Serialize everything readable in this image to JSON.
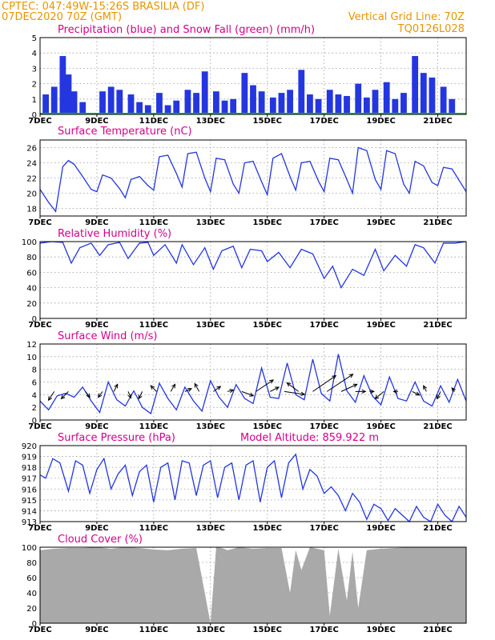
{
  "header": {
    "line1": "CPTEC:   047:49W-15:26S   BRASILIA (DF)",
    "line2": "07DEC2020 70Z (GMT)",
    "vgrid": "Vertical Grid Line: 70Z",
    "code": "TQ0126L028"
  },
  "colors": {
    "header": "#e69500",
    "title": "#d4008a",
    "line": "#2436e0",
    "snow": "#1fb04a",
    "cloud": "#a9a9a9"
  },
  "x_tick_labels": [
    "7DEC",
    "9DEC",
    "11DEC",
    "13DEC",
    "15DEC",
    "17DEC",
    "19DEC",
    "21DEC"
  ],
  "panels": [
    {
      "title": "Precipitation (blue) and Snow Fall (green) (mm/h)",
      "yticks": [
        "0",
        "1",
        "2",
        "3",
        "4",
        "5"
      ]
    },
    {
      "title": "Surface Temperature (nC)",
      "yticks": [
        "18",
        "20",
        "22",
        "24",
        "26"
      ]
    },
    {
      "title": "Relative Humidity (%)",
      "yticks": [
        "0",
        "20",
        "40",
        "60",
        "80",
        "100"
      ]
    },
    {
      "title": "Surface Wind (m/s)",
      "yticks": [
        "0",
        "2",
        "4",
        "6",
        "8",
        "10",
        "12"
      ]
    },
    {
      "title": "Surface Pressure (hPa)",
      "subtitle": "Model Altitude: 859.922 m",
      "yticks": [
        "913",
        "914",
        "915",
        "916",
        "917",
        "918",
        "919",
        "920"
      ]
    },
    {
      "title": "Cloud Cover (%)",
      "yticks": [
        "0",
        "20",
        "40",
        "60",
        "80",
        "100"
      ]
    }
  ],
  "chart_data": [
    {
      "type": "bar",
      "title": "Precipitation (blue) and Snow Fall (green) (mm/h)",
      "x": [
        0.2,
        0.5,
        0.8,
        1.0,
        1.2,
        1.5,
        2.2,
        2.5,
        2.8,
        3.2,
        3.5,
        3.8,
        4.2,
        4.5,
        4.8,
        5.2,
        5.5,
        5.8,
        6.2,
        6.5,
        6.8,
        7.2,
        7.5,
        7.8,
        8.2,
        8.5,
        8.8,
        9.2,
        9.5,
        9.8,
        10.2,
        10.5,
        10.8,
        11.2,
        11.5,
        11.8,
        12.2,
        12.5,
        12.8,
        13.2,
        13.5,
        13.8,
        14.2,
        14.5
      ],
      "series": [
        {
          "name": "Precipitation",
          "values": [
            1.3,
            1.8,
            3.8,
            2.6,
            1.5,
            0.8,
            1.5,
            1.8,
            1.6,
            1.3,
            0.8,
            0.6,
            1.4,
            0.6,
            0.9,
            1.6,
            1.4,
            2.8,
            1.5,
            0.9,
            1.0,
            2.7,
            1.9,
            1.5,
            1.1,
            1.4,
            1.6,
            2.9,
            1.3,
            1.0,
            1.6,
            1.3,
            1.2,
            2.0,
            1.1,
            1.6,
            2.1,
            1.0,
            1.4,
            3.8,
            2.7,
            2.4,
            1.8,
            1.0
          ]
        },
        {
          "name": "Snow Fall",
          "values": [
            0,
            0,
            0,
            0,
            0,
            0,
            0,
            0,
            0,
            0,
            0,
            0,
            0,
            0,
            0,
            0,
            0,
            0,
            0,
            0,
            0,
            0,
            0,
            0,
            0,
            0,
            0,
            0,
            0,
            0,
            0,
            0,
            0,
            0,
            0,
            0,
            0,
            0,
            0,
            0,
            0,
            0,
            0,
            0
          ]
        }
      ],
      "xlim": [
        0,
        15
      ],
      "ylim": [
        0,
        5
      ]
    },
    {
      "type": "line",
      "title": "Surface Temperature (nC)",
      "x": [
        0,
        0.3,
        0.55,
        0.8,
        1.0,
        1.2,
        1.5,
        1.8,
        2.0,
        2.2,
        2.5,
        2.8,
        3.0,
        3.2,
        3.5,
        3.8,
        4.0,
        4.2,
        4.5,
        4.8,
        5.0,
        5.2,
        5.5,
        5.8,
        6.0,
        6.2,
        6.5,
        6.8,
        7.0,
        7.2,
        7.5,
        7.8,
        8.0,
        8.2,
        8.5,
        8.8,
        9.0,
        9.2,
        9.5,
        9.8,
        10.0,
        10.2,
        10.5,
        10.8,
        11.0,
        11.2,
        11.5,
        11.8,
        12.0,
        12.2,
        12.5,
        12.8,
        13.0,
        13.2,
        13.5,
        13.8,
        14.0,
        14.2,
        14.5,
        14.8,
        15.0
      ],
      "y": [
        20.5,
        18.8,
        17.6,
        23.5,
        24.3,
        23.8,
        22.2,
        20.5,
        20.2,
        22.4,
        22.0,
        20.6,
        19.4,
        21.8,
        22.2,
        21.0,
        20.4,
        24.8,
        25.0,
        22.6,
        20.8,
        25.2,
        25.4,
        22.0,
        20.2,
        24.6,
        24.4,
        21.2,
        20.0,
        24.0,
        24.2,
        21.5,
        19.8,
        24.6,
        25.2,
        22.2,
        20.4,
        24.0,
        24.2,
        21.6,
        20.2,
        24.6,
        24.4,
        21.8,
        20.0,
        26.0,
        25.6,
        21.8,
        20.5,
        25.6,
        25.2,
        21.2,
        20.0,
        24.2,
        23.6,
        21.4,
        21.0,
        23.4,
        23.2,
        21.4,
        20.2
      ],
      "ylim": [
        17,
        27
      ]
    },
    {
      "type": "line",
      "title": "Relative Humidity (%)",
      "x": [
        0,
        0.4,
        0.8,
        1.1,
        1.4,
        1.8,
        2.1,
        2.4,
        2.8,
        3.1,
        3.5,
        3.8,
        4.0,
        4.4,
        4.8,
        5.0,
        5.4,
        5.8,
        6.1,
        6.4,
        6.8,
        7.1,
        7.4,
        7.8,
        8.0,
        8.4,
        8.8,
        9.2,
        9.6,
        10.0,
        10.3,
        10.6,
        11.0,
        11.4,
        11.8,
        12.1,
        12.5,
        12.9,
        13.2,
        13.5,
        13.9,
        14.2,
        14.6,
        15.0
      ],
      "y": [
        98,
        100,
        99,
        72,
        92,
        98,
        82,
        96,
        99,
        78,
        98,
        99,
        82,
        96,
        72,
        96,
        70,
        92,
        64,
        88,
        94,
        66,
        90,
        88,
        74,
        86,
        66,
        90,
        84,
        52,
        68,
        40,
        64,
        56,
        90,
        62,
        82,
        68,
        96,
        92,
        72,
        98,
        98,
        100
      ],
      "ylim": [
        0,
        100
      ]
    },
    {
      "type": "line",
      "title": "Surface Wind (m/s)",
      "x": [
        0,
        0.3,
        0.6,
        0.9,
        1.2,
        1.5,
        1.8,
        2.1,
        2.4,
        2.7,
        3.0,
        3.3,
        3.6,
        3.9,
        4.2,
        4.5,
        4.8,
        5.1,
        5.4,
        5.7,
        6.0,
        6.3,
        6.6,
        6.9,
        7.2,
        7.5,
        7.8,
        8.1,
        8.4,
        8.7,
        9.0,
        9.3,
        9.6,
        9.9,
        10.2,
        10.5,
        10.8,
        11.1,
        11.4,
        11.7,
        12.0,
        12.3,
        12.6,
        12.9,
        13.2,
        13.5,
        13.8,
        14.1,
        14.4,
        14.7,
        15.0
      ],
      "y": [
        3.0,
        1.6,
        3.8,
        4.2,
        3.6,
        5.2,
        3.0,
        1.2,
        6.0,
        3.2,
        2.2,
        4.6,
        2.0,
        1.0,
        5.8,
        3.4,
        1.6,
        5.2,
        3.0,
        1.4,
        6.2,
        3.6,
        2.0,
        5.6,
        3.4,
        2.6,
        8.2,
        3.6,
        3.4,
        9.0,
        4.0,
        3.2,
        9.6,
        4.2,
        3.0,
        10.4,
        4.6,
        2.8,
        7.0,
        3.8,
        2.4,
        6.8,
        3.4,
        3.0,
        6.0,
        3.0,
        2.2,
        5.4,
        2.8,
        6.4,
        3.0
      ],
      "arrows": {
        "x": [
          0.5,
          1.0,
          1.6,
          2.2,
          2.6,
          3.1,
          3.6,
          4.1,
          4.6,
          5.1,
          5.6,
          6.1,
          6.6,
          7.1,
          7.6,
          8.1,
          8.6,
          9.1,
          9.6,
          10.1,
          10.6,
          11.1,
          11.6,
          12.1,
          12.6,
          13.1,
          13.6,
          14.1,
          14.6
        ],
        "u": [
          -0.8,
          -1.0,
          0.6,
          -0.6,
          0.5,
          0.4,
          -0.5,
          -0.8,
          0.6,
          0.9,
          -0.6,
          1.0,
          0.8,
          1.6,
          2.4,
          1.2,
          2.8,
          -1.6,
          3.2,
          3.6,
          2.2,
          1.4,
          0.6,
          -1.2,
          -0.6,
          1.0,
          -0.4,
          -0.5,
          -0.4
        ],
        "v": [
          -1.2,
          -1.0,
          -0.8,
          -0.8,
          1.0,
          -0.9,
          -1.0,
          0.8,
          1.0,
          0.4,
          1.1,
          0.7,
          0.2,
          -0.6,
          1.6,
          0.6,
          -0.4,
          1.2,
          2.2,
          2.4,
          1.0,
          0.0,
          0.0,
          -1.0,
          0.0,
          -0.5,
          0.8,
          -1.0,
          0.5
        ]
      },
      "ylim": [
        0,
        12
      ]
    },
    {
      "type": "line",
      "title": "Surface Pressure (hPa)",
      "x": [
        0,
        0.2,
        0.45,
        0.7,
        1.0,
        1.25,
        1.5,
        1.75,
        2.0,
        2.25,
        2.5,
        2.75,
        3.0,
        3.25,
        3.5,
        3.75,
        4.0,
        4.25,
        4.5,
        4.75,
        5.0,
        5.25,
        5.5,
        5.75,
        6.0,
        6.25,
        6.5,
        6.75,
        7.0,
        7.25,
        7.5,
        7.75,
        8.0,
        8.25,
        8.5,
        8.75,
        9.0,
        9.25,
        9.5,
        9.75,
        10.0,
        10.25,
        10.5,
        10.75,
        11.0,
        11.25,
        11.5,
        11.75,
        12.0,
        12.25,
        12.5,
        12.75,
        13.0,
        13.25,
        13.5,
        13.75,
        14.0,
        14.25,
        14.5,
        14.75,
        15.0
      ],
      "y": [
        917.3,
        917.0,
        918.8,
        918.4,
        915.8,
        918.6,
        918.2,
        915.6,
        917.8,
        918.8,
        916.0,
        917.4,
        918.2,
        915.4,
        917.6,
        918.2,
        914.8,
        918.0,
        918.4,
        915.0,
        918.6,
        918.4,
        915.4,
        918.2,
        918.6,
        915.2,
        918.0,
        918.4,
        915.0,
        918.2,
        918.6,
        914.8,
        918.0,
        918.6,
        915.2,
        918.4,
        919.2,
        916.0,
        917.8,
        917.2,
        915.6,
        916.2,
        915.4,
        914.0,
        915.6,
        914.8,
        913.2,
        914.6,
        914.2,
        913.1,
        914.2,
        913.6,
        913.0,
        914.4,
        913.4,
        913.0,
        914.6,
        913.6,
        913.0,
        914.4,
        913.4
      ],
      "subtitle": "Model Altitude: 859.922 m",
      "ylim": [
        913,
        920
      ]
    },
    {
      "type": "area",
      "title": "Cloud Cover (%)",
      "x": [
        0,
        0.5,
        1.0,
        1.5,
        2.0,
        2.5,
        3.0,
        3.5,
        4.0,
        4.5,
        5.0,
        5.5,
        6.0,
        6.2,
        6.4,
        6.6,
        7.0,
        7.5,
        8.0,
        8.5,
        8.8,
        9.0,
        9.2,
        9.5,
        10.0,
        10.2,
        10.5,
        10.8,
        11.0,
        11.2,
        11.5,
        12.0,
        12.5,
        13.0,
        13.5,
        14.0,
        14.5,
        15.0
      ],
      "y": [
        96,
        98,
        99,
        99,
        100,
        98,
        100,
        99,
        97,
        96,
        98,
        99,
        0,
        100,
        99,
        96,
        100,
        98,
        99,
        99,
        40,
        96,
        70,
        100,
        96,
        10,
        98,
        30,
        94,
        20,
        96,
        98,
        99,
        100,
        100,
        100,
        100,
        100
      ],
      "ylim": [
        0,
        100
      ]
    }
  ]
}
